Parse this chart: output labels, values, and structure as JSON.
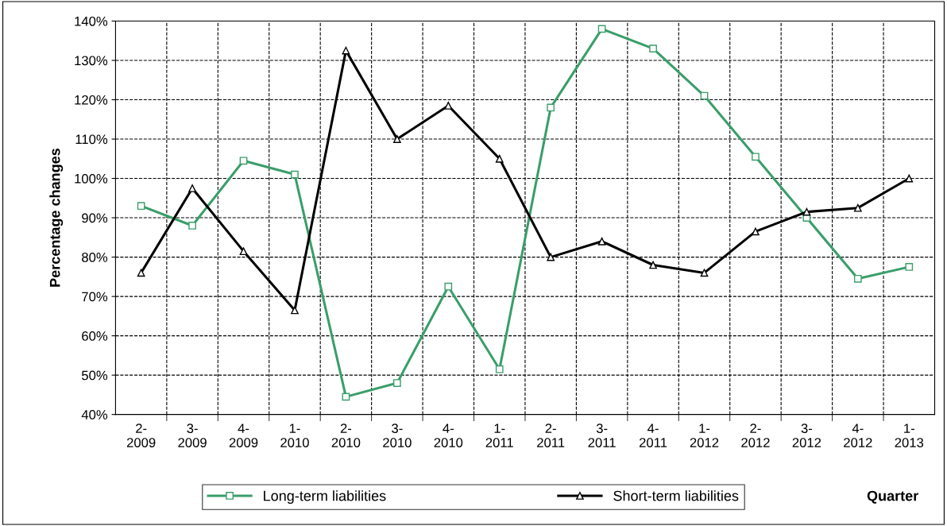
{
  "chart_data": {
    "type": "line",
    "ylabel": "Percentage changes",
    "xlabel": "Quarter",
    "categories": [
      "2-\n2009",
      "3-\n2009",
      "4-\n2009",
      "1-\n2010",
      "2-\n2010",
      "3-\n2010",
      "4-\n2010",
      "1-\n2011",
      "2-\n2011",
      "3-\n2011",
      "4-\n2011",
      "1-\n2012",
      "2-\n2012",
      "3-\n2012",
      "4-\n2012",
      "1-\n2013"
    ],
    "series": [
      {
        "name": "Long-term liabilities",
        "color": "#3a9e6a",
        "marker": "square",
        "values": [
          93,
          88,
          104.5,
          101,
          44.5,
          48,
          72.5,
          51.5,
          118,
          138,
          133,
          121,
          105.5,
          90,
          74.5,
          77.5
        ]
      },
      {
        "name": "Short-term liabilities",
        "color": "#000000",
        "marker": "triangle",
        "values": [
          76,
          97.5,
          81.5,
          66.5,
          132.5,
          110,
          118.5,
          105,
          80,
          84,
          78,
          76,
          86.5,
          91.5,
          92.5,
          100
        ]
      }
    ],
    "ylim": [
      40,
      140
    ],
    "yticks": [
      {
        "value": 40,
        "label": "40%"
      },
      {
        "value": 50,
        "label": "50%"
      },
      {
        "value": 60,
        "label": "60%"
      },
      {
        "value": 70,
        "label": "70%"
      },
      {
        "value": 80,
        "label": "80%"
      },
      {
        "value": 90,
        "label": "90%"
      },
      {
        "value": 100,
        "label": "100%"
      },
      {
        "value": 110,
        "label": "110%"
      },
      {
        "value": 120,
        "label": "120%"
      },
      {
        "value": 130,
        "label": "130%"
      },
      {
        "value": 140,
        "label": "140%"
      }
    ],
    "grid": true,
    "legend": "bottom",
    "line_style": "solid"
  }
}
